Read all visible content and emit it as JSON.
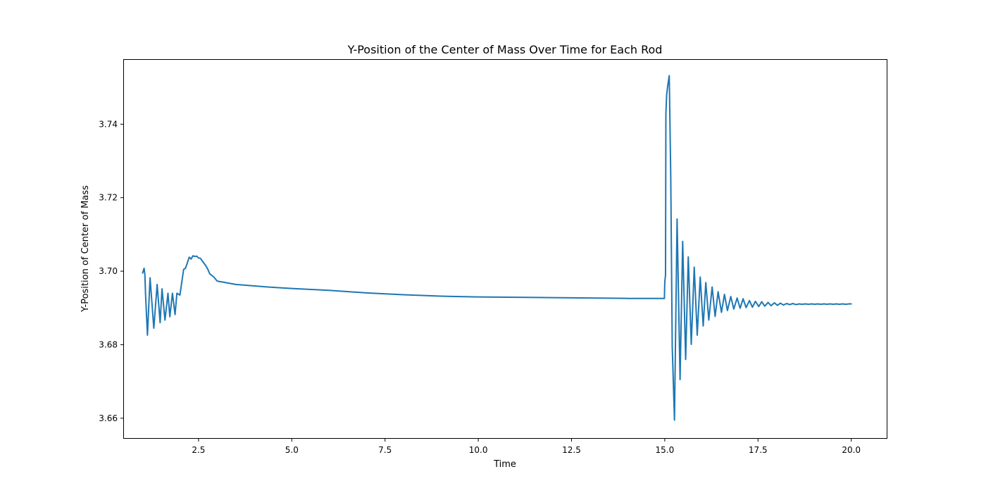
{
  "chart_data": {
    "type": "line",
    "title": "Y-Position of the Center of Mass Over Time for Each Rod",
    "xlabel": "Time",
    "ylabel": "Y-Position of Center of Mass",
    "xlim": [
      0.5,
      20.95
    ],
    "ylim": [
      3.6546,
      3.7575
    ],
    "xticks": [
      {
        "value": 2.5,
        "label": "2.5"
      },
      {
        "value": 5.0,
        "label": "5.0"
      },
      {
        "value": 7.5,
        "label": "7.5"
      },
      {
        "value": 10.0,
        "label": "10.0"
      },
      {
        "value": 12.5,
        "label": "12.5"
      },
      {
        "value": 15.0,
        "label": "15.0"
      },
      {
        "value": 17.5,
        "label": "17.5"
      },
      {
        "value": 20.0,
        "label": "20.0"
      }
    ],
    "yticks": [
      {
        "value": 3.66,
        "label": "3.66"
      },
      {
        "value": 3.68,
        "label": "3.68"
      },
      {
        "value": 3.7,
        "label": "3.70"
      },
      {
        "value": 3.72,
        "label": "3.72"
      },
      {
        "value": 3.74,
        "label": "3.74"
      }
    ],
    "grid": false,
    "colors": {
      "series": "#1f77b4",
      "axes": "#000000",
      "background": "#ffffff"
    },
    "series": [
      {
        "x": [
          1.0,
          1.04,
          1.06,
          1.08,
          1.13,
          1.2,
          1.3,
          1.39,
          1.47,
          1.52,
          1.6,
          1.68,
          1.73,
          1.8,
          1.87,
          1.92,
          2.0,
          2.1,
          2.15,
          2.25,
          2.3,
          2.35,
          2.4,
          2.45,
          2.5,
          2.55,
          2.6,
          2.65,
          2.7,
          2.75,
          2.8,
          2.85,
          2.9,
          2.95,
          3.0,
          3.5,
          4.0,
          4.5,
          5.0,
          6.0,
          7.0,
          8.0,
          9.0,
          10.0,
          12.0,
          14.0,
          14.99,
          15.0,
          15.02,
          15.03,
          15.05,
          15.08,
          15.12,
          15.16,
          15.2,
          15.26,
          15.33,
          15.41,
          15.48,
          15.56,
          15.63,
          15.71,
          15.79,
          15.87,
          15.95,
          16.03,
          16.1,
          16.18,
          16.27,
          16.35,
          16.43,
          16.52,
          16.6,
          16.68,
          16.77,
          16.85,
          16.94,
          17.02,
          17.1,
          17.18,
          17.27,
          17.35,
          17.43,
          17.52,
          17.6,
          17.68,
          17.77,
          17.85,
          17.94,
          18.02,
          18.1,
          18.18,
          18.27,
          18.35,
          18.43,
          18.52,
          18.6,
          18.68,
          18.77,
          18.85,
          18.94,
          19.02,
          19.1,
          19.18,
          19.27,
          19.35,
          19.43,
          19.52,
          19.6,
          19.68,
          19.77,
          19.85,
          19.94,
          20.0
        ],
        "y": [
          3.6995,
          3.7008,
          3.6992,
          3.6935,
          3.6826,
          3.6982,
          3.6845,
          3.6964,
          3.686,
          3.6952,
          3.6867,
          3.694,
          3.6876,
          3.694,
          3.6882,
          3.694,
          3.6935,
          3.7005,
          3.7008,
          3.7038,
          3.7033,
          3.7042,
          3.704,
          3.7041,
          3.7036,
          3.7035,
          3.7028,
          3.7021,
          3.7014,
          3.7005,
          3.6993,
          3.6989,
          3.6985,
          3.6979,
          3.6973,
          3.6964,
          3.696,
          3.6956,
          3.6953,
          3.6948,
          3.6941,
          3.6936,
          3.6932,
          3.693,
          3.6928,
          3.6926,
          3.6926,
          3.697,
          3.699,
          3.743,
          3.748,
          3.7505,
          3.7532,
          3.726,
          3.6795,
          3.6595,
          3.7142,
          3.6705,
          3.7081,
          3.676,
          3.7039,
          3.6801,
          3.7011,
          3.6826,
          3.6984,
          3.6851,
          3.6969,
          3.6867,
          3.6957,
          3.6877,
          3.6944,
          3.6888,
          3.6937,
          3.6893,
          3.6931,
          3.6897,
          3.6927,
          3.6899,
          3.6925,
          3.6901,
          3.692,
          3.6902,
          3.6918,
          3.6904,
          3.6917,
          3.6905,
          3.6915,
          3.6906,
          3.6914,
          3.6907,
          3.6913,
          3.6908,
          3.6912,
          3.6909,
          3.6912,
          3.6909,
          3.6911,
          3.691,
          3.6911,
          3.691,
          3.6911,
          3.691,
          3.6911,
          3.691,
          3.6911,
          3.691,
          3.6911,
          3.691,
          3.6911,
          3.691,
          3.6911,
          3.691,
          3.6911,
          3.6911
        ]
      }
    ]
  }
}
